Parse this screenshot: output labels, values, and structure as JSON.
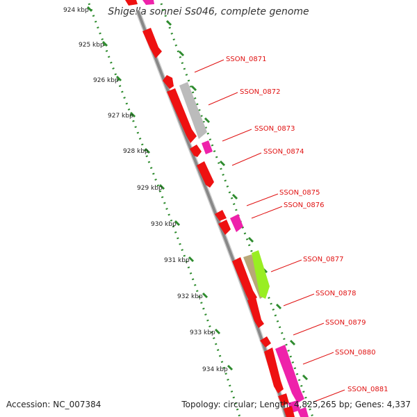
{
  "title": "Shigella sonnei Ss046, complete genome",
  "accession": "Accession: NC_007384",
  "summary": "Topology: circular; Length: 4,825,265 bp; Genes: 4,337",
  "ruler": [
    "924 kbp",
    "925 kbp",
    "926 kbp",
    "927 kbp",
    "928 kbp",
    "929 kbp",
    "930 kbp",
    "931 kbp",
    "932 kbp",
    "933 kbp",
    "934 kbp"
  ],
  "gene_labels": [
    "SSON_0871",
    "SSON_0872",
    "SSON_0873",
    "SSON_0874",
    "SSON_0875",
    "SSON_0876",
    "SSON_0877",
    "SSON_0878",
    "SSON_0879",
    "SSON_0880",
    "SSON_0881"
  ],
  "colors": {
    "backbone": "#888888",
    "ruler_dots": "#2e8b2e",
    "red_gene": "#ee1111",
    "magenta_gene": "#ee22aa",
    "grey_gene": "#bbbbbb",
    "olive_gene": "#b8a878",
    "lime_gene": "#99ee22",
    "label_text": "#e01010"
  }
}
